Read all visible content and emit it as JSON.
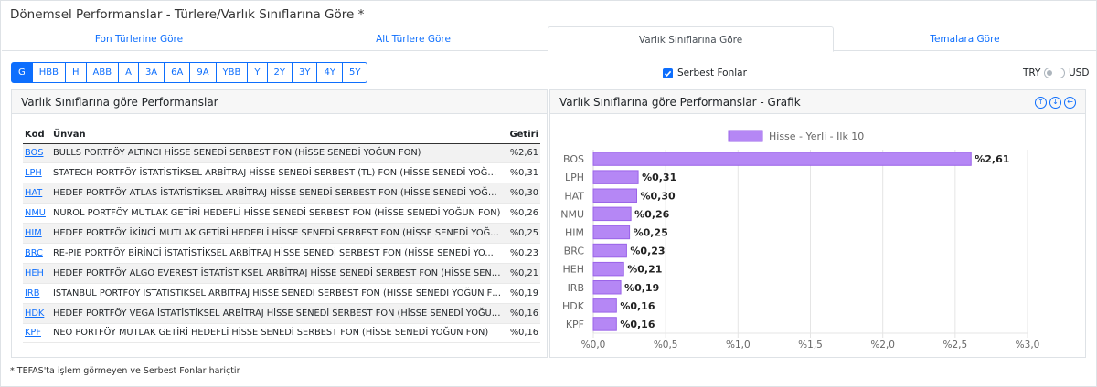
{
  "page": {
    "title": "Dönemsel Performanslar - Türlere/Varlık Sınıflarına Göre *"
  },
  "tabs": [
    {
      "label": "Fon Türlerine Göre",
      "active": false
    },
    {
      "label": "Alt Türlere Göre",
      "active": false
    },
    {
      "label": "Varlık Sınıflarına Göre",
      "active": true
    },
    {
      "label": "Temalara Göre",
      "active": false
    }
  ],
  "periods": [
    "G",
    "HBB",
    "H",
    "ABB",
    "A",
    "3A",
    "6A",
    "9A",
    "YBB",
    "Y",
    "2Y",
    "3Y",
    "4Y",
    "5Y"
  ],
  "active_period": "G",
  "filter": {
    "label": "Serbest Fonlar",
    "checked": true
  },
  "currency": {
    "left": "TRY",
    "right": "USD"
  },
  "table_panel": {
    "title": "Varlık Sınıflarına göre Performanslar",
    "columns": {
      "code": "Kod",
      "name": "Ünvan",
      "ret": "Getiri"
    },
    "rows": [
      {
        "code": "BOS",
        "name": "BULLS PORTFÖY ALTINCI HİSSE SENEDİ SERBEST FON (HİSSE SENEDİ YOĞUN FON)",
        "ret": "%2,61"
      },
      {
        "code": "LPH",
        "name": "STATECH PORTFÖY İSTATİSTİKSEL ARBİTRAJ HİSSE SENEDİ SERBEST (TL) FON (HİSSE SENEDİ YOĞU...",
        "ret": "%0,31"
      },
      {
        "code": "HAT",
        "name": "HEDEF PORTFÖY ATLAS İSTATİSTİKSEL ARBİTRAJ HİSSE SENEDİ SERBEST FON (HİSSE SENEDİ YOĞUN...",
        "ret": "%0,30"
      },
      {
        "code": "NMU",
        "name": "NUROL PORTFÖY MUTLAK GETİRİ HEDEFLİ HİSSE SENEDİ SERBEST FON (HİSSE SENEDİ YOĞUN FON)",
        "ret": "%0,26"
      },
      {
        "code": "HIM",
        "name": "HEDEF PORTFÖY İKİNCİ MUTLAK GETİRİ HEDEFLİ HİSSE SENEDİ SERBEST FON (HİSSE SENEDİ YOĞUN...",
        "ret": "%0,25"
      },
      {
        "code": "BRC",
        "name": "RE-PIE PORTFÖY BİRİNCİ İSTATİSTİKSEL ARBİTRAJ HİSSE SENEDİ SERBEST FON (HİSSE SENEDİ YO...",
        "ret": "%0,23"
      },
      {
        "code": "HEH",
        "name": "HEDEF PORTFÖY ALGO EVEREST İSTATİSTİKSEL ARBİTRAJ HİSSE SENEDİ SERBEST FON (HİSSE SENEDİ...",
        "ret": "%0,21"
      },
      {
        "code": "IRB",
        "name": "İSTANBUL PORTFÖY İSTATİSTİKSEL ARBİTRAJ HİSSE SENEDİ SERBEST FON (HİSSE SENEDİ YOĞUN FON)",
        "ret": "%0,19"
      },
      {
        "code": "HDK",
        "name": "HEDEF PORTFÖY VEGA İSTATİSTİKSEL ARBİTRAJ HİSSE SENEDİ SERBEST FON (HİSSE SENEDİ YOĞUN...",
        "ret": "%0,16"
      },
      {
        "code": "KPF",
        "name": "NEO PORTFÖY MUTLAK GETİRİ HEDEFLİ HİSSE SENEDİ SERBEST FON (HİSSE SENEDİ YOĞUN FON)",
        "ret": "%0,16"
      }
    ]
  },
  "chart_panel": {
    "title": "Varlık Sınıflarına göre Performanslar - Grafik",
    "icons": [
      "arrow-up-icon",
      "arrow-down-icon",
      "arrow-left-icon"
    ]
  },
  "chart_data": {
    "type": "bar",
    "orientation": "horizontal",
    "legend": "Hisse - Yerli - İlk 10",
    "categories": [
      "BOS",
      "LPH",
      "HAT",
      "NMU",
      "HIM",
      "BRC",
      "HEH",
      "IRB",
      "HDK",
      "KPF"
    ],
    "values": [
      2.61,
      0.31,
      0.3,
      0.26,
      0.25,
      0.23,
      0.21,
      0.19,
      0.16,
      0.16
    ],
    "value_labels": [
      "%2,61",
      "%0,31",
      "%0,30",
      "%0,26",
      "%0,25",
      "%0,23",
      "%0,21",
      "%0,19",
      "%0,16",
      "%0,16"
    ],
    "x_ticks": [
      0,
      0.5,
      1,
      1.5,
      2,
      2.5,
      3
    ],
    "x_tick_labels": [
      "%0,0",
      "%0,5",
      "%1,0",
      "%1,5",
      "%2,0",
      "%2,5",
      "%3,0"
    ],
    "xlim": [
      0,
      3
    ],
    "color": "#b587f5",
    "border_color": "#9a63e8"
  },
  "footnote": "* TEFAS'ta işlem görmeyen ve Serbest Fonlar hariçtir"
}
